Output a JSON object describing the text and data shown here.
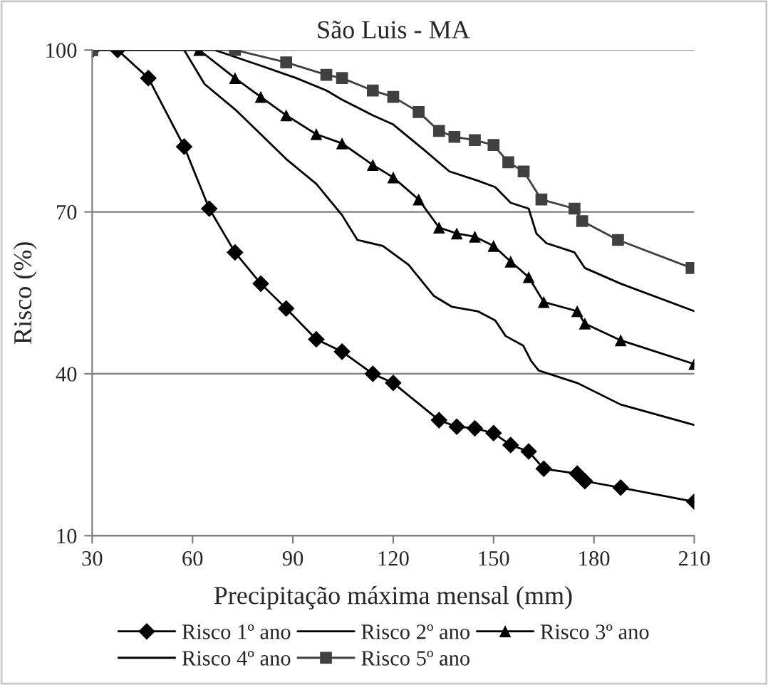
{
  "chart_data": {
    "type": "line",
    "title": "São Luis - MA",
    "xlabel": "Precipitação máxima mensal (mm)",
    "ylabel": "Risco (%)",
    "xlim": [
      30,
      210
    ],
    "xticks": [
      30,
      60,
      90,
      120,
      150,
      180,
      210
    ],
    "ylim": [
      10,
      100
    ],
    "yticks": [
      10,
      40,
      70,
      100
    ],
    "grid": "y",
    "legend": "bottom",
    "series": [
      {
        "name": "Risco 1º ano",
        "color": "#000000",
        "marker": "diamond",
        "x": [
          30,
          37.6,
          46.8,
          57.5,
          65,
          72.7,
          80.4,
          88,
          97,
          104.7,
          113.9,
          120,
          133.7,
          139,
          144.4,
          150,
          155.1,
          160.5,
          165,
          175,
          177.3,
          188,
          210
        ],
        "values": [
          100,
          100,
          94.8,
          82.1,
          70.6,
          62.5,
          56.7,
          52.1,
          46.4,
          44.1,
          40,
          38.3,
          31.4,
          30.2,
          29.9,
          29,
          26.8,
          25.6,
          22.4,
          21.5,
          20.1,
          18.9,
          16.3
        ]
      },
      {
        "name": "Risco 2º ano",
        "color": "#000000",
        "marker": "none",
        "x": [
          30,
          57.5,
          63.6,
          72.7,
          80.4,
          88,
          97,
          104.7,
          109.3,
          116.9,
          124.6,
          132.2,
          137.6,
          145.2,
          150.5,
          153.6,
          158.9,
          161.2,
          163.5,
          175,
          188,
          210
        ],
        "values": [
          100,
          100,
          93.7,
          89,
          84.4,
          79.8,
          75.2,
          69.4,
          64.8,
          63.7,
          60.2,
          54.4,
          52.4,
          51.6,
          49.9,
          47,
          45.2,
          42.4,
          40.6,
          38.3,
          34.3,
          30.5
        ]
      },
      {
        "name": "Risco 3º ano",
        "color": "#000000",
        "marker": "triangle",
        "x": [
          30,
          62,
          72.7,
          80.4,
          88,
          97,
          104.7,
          113.9,
          120,
          127.6,
          133.7,
          139,
          144.4,
          150,
          155.1,
          160.5,
          165,
          175,
          177.3,
          188,
          210
        ],
        "values": [
          100,
          100,
          94.8,
          91.3,
          87.9,
          84.4,
          82.7,
          78.7,
          76.4,
          72.3,
          67.1,
          66,
          65.4,
          63.7,
          60.8,
          57.9,
          53.3,
          51.6,
          49.3,
          46.2,
          41.8
        ]
      },
      {
        "name": "Risco 4º ano",
        "color": "#000000",
        "marker": "none",
        "x": [
          30,
          66.6,
          80.4,
          91,
          100,
          104.7,
          113.9,
          120,
          129.2,
          136.8,
          145.2,
          150.5,
          155.1,
          160.5,
          162.8,
          165.8,
          174.2,
          177.3,
          188,
          210
        ],
        "values": [
          100,
          100,
          97.1,
          94.8,
          92.5,
          90.8,
          87.9,
          86.2,
          81.5,
          77.5,
          75.8,
          74.6,
          71.7,
          70.6,
          66,
          64.2,
          62.5,
          59.6,
          56.7,
          51.6
        ]
      },
      {
        "name": "Risco 5º ano",
        "color": "#404040",
        "marker": "square",
        "x": [
          30,
          72.7,
          88,
          100,
          104.7,
          113.9,
          120,
          127.6,
          133.7,
          138.3,
          144.4,
          150,
          154.4,
          159,
          164.3,
          174.2,
          176.5,
          187.2,
          209.2
        ],
        "values": [
          100,
          100,
          97.7,
          95.4,
          94.8,
          92.5,
          91.3,
          88.5,
          85,
          83.9,
          83.3,
          82.4,
          79.2,
          77.5,
          72.3,
          70.6,
          68.3,
          64.8,
          59.6
        ]
      }
    ]
  }
}
